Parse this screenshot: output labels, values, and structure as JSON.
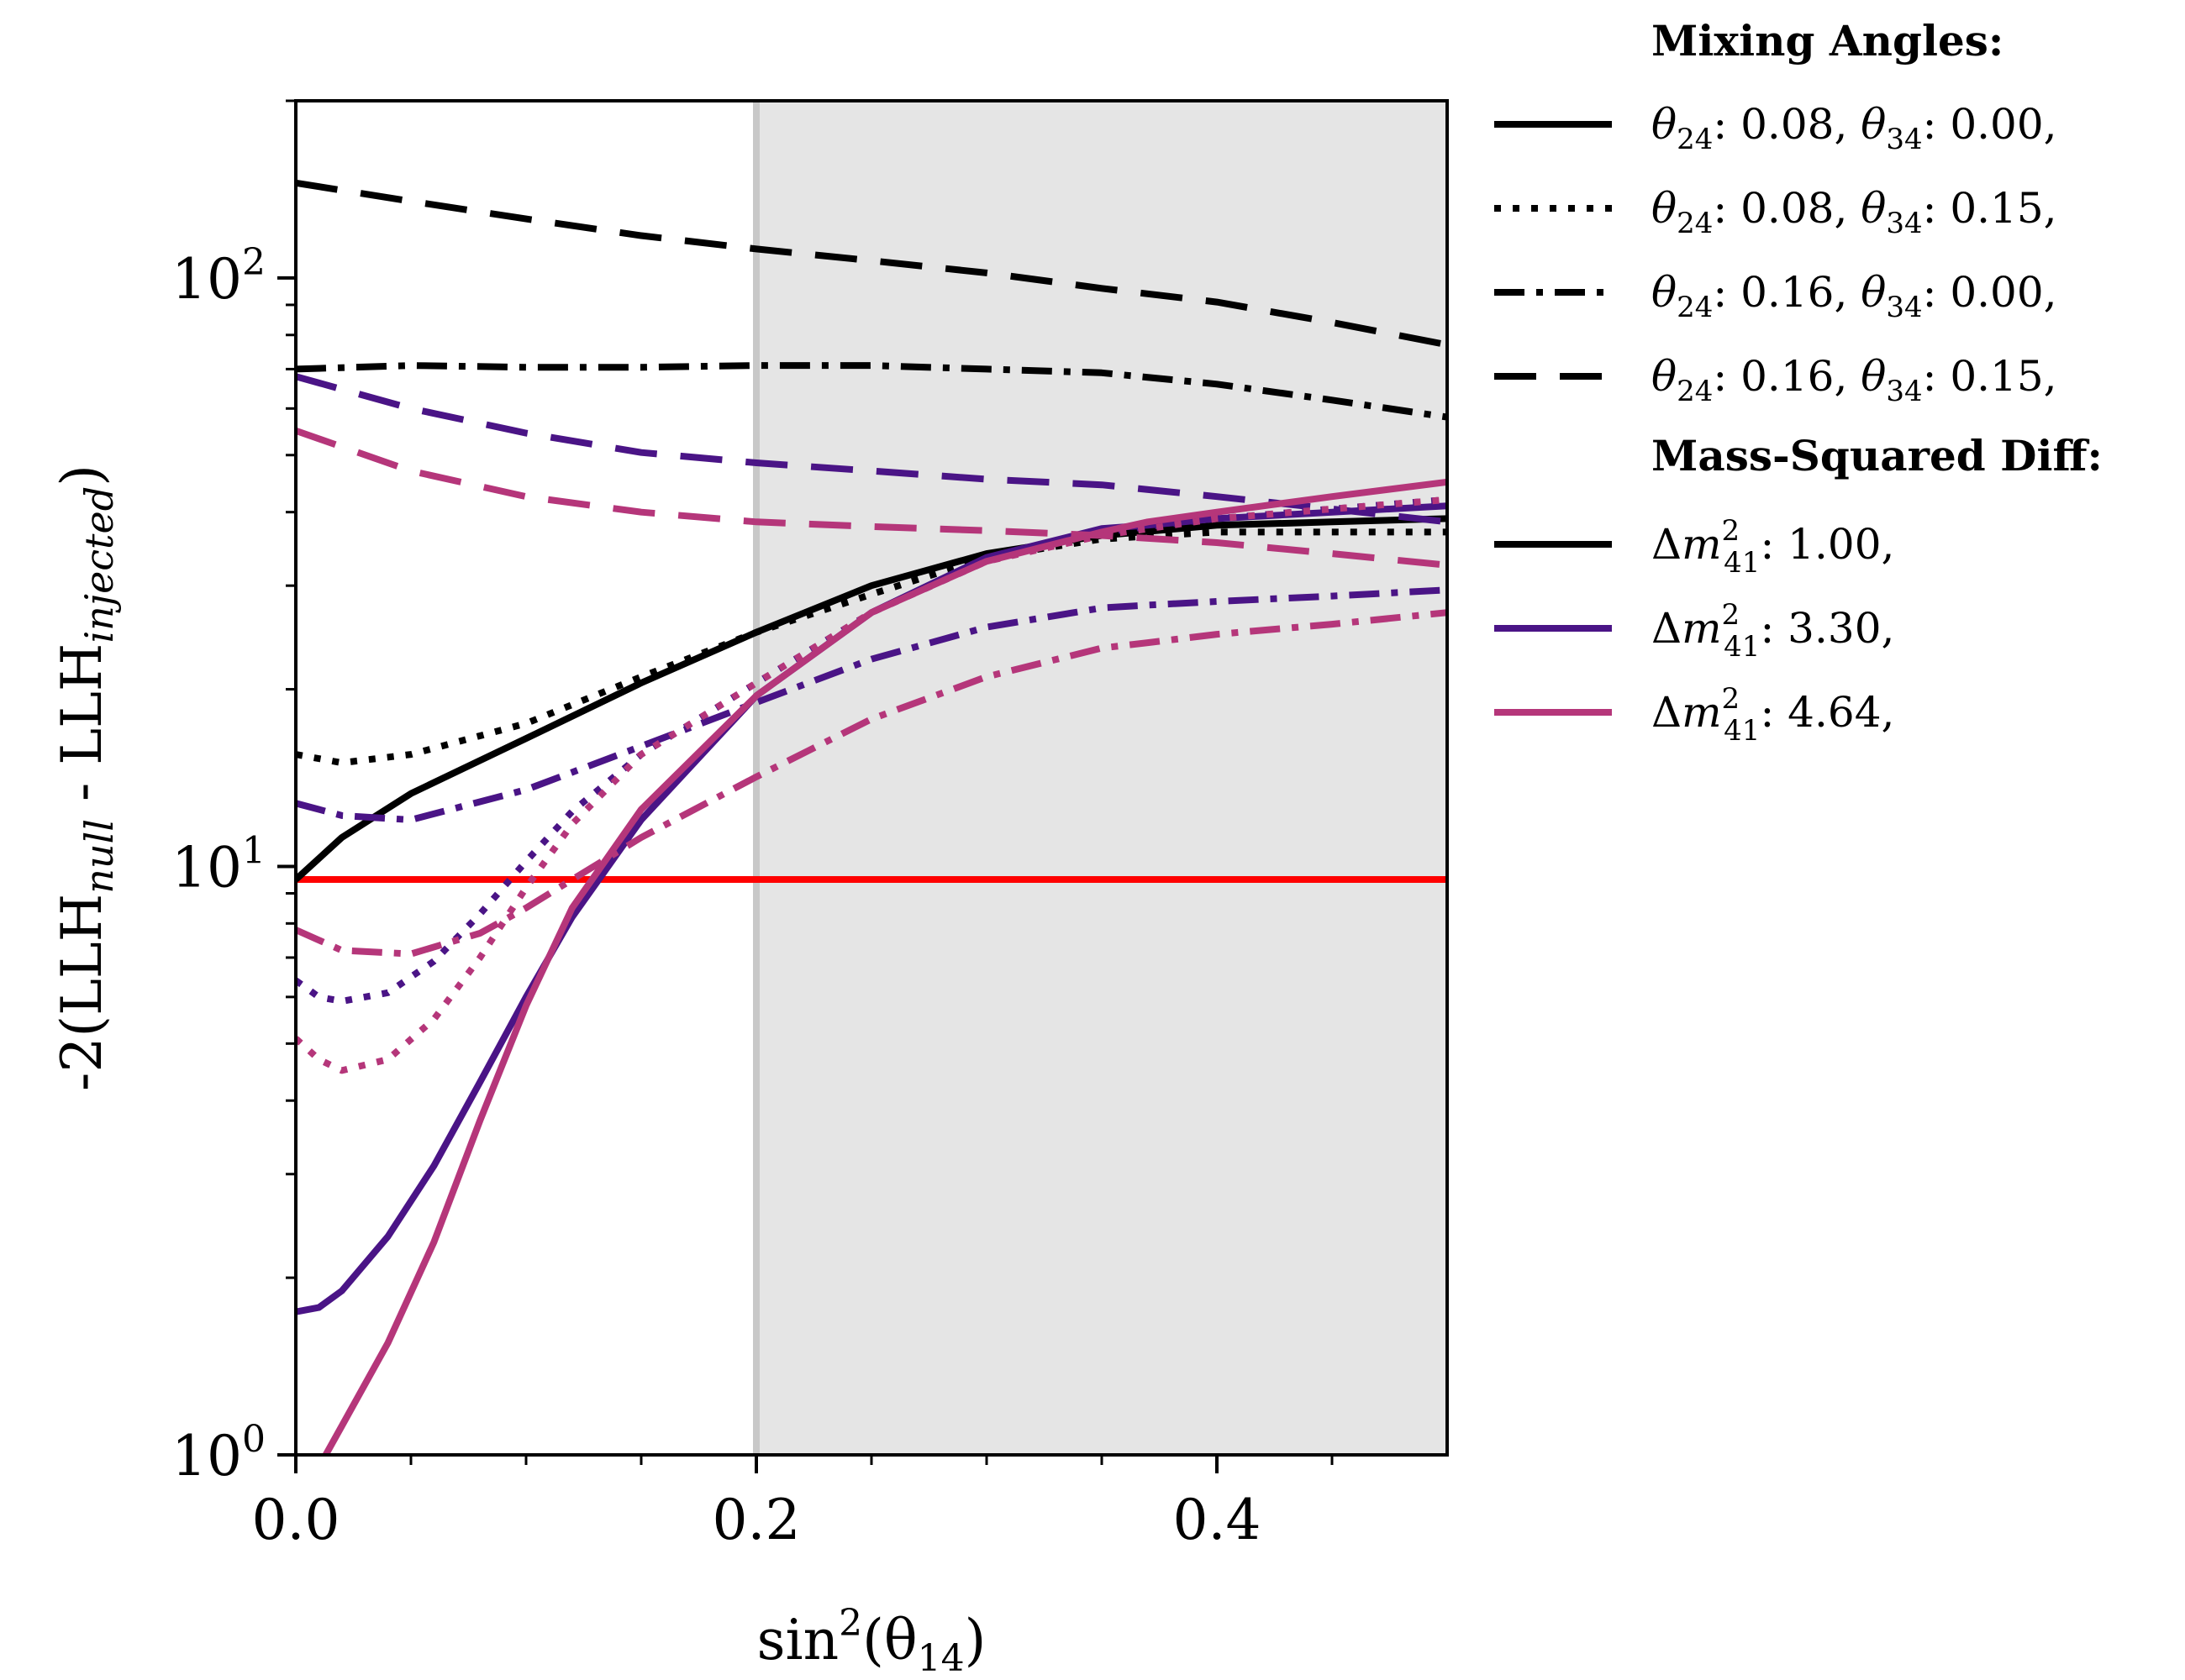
{
  "chart_data": {
    "type": "line",
    "yscale": "log",
    "xlim": [
      0.0,
      0.5
    ],
    "ylim": [
      1,
      200
    ],
    "xlabel": "sin²(θ14)",
    "ylabel": "-2(LLH_null - LLH_injected)",
    "ylabel_parts": {
      "pre": "-2(LLH",
      "sub1": "null",
      "mid": " - LLH",
      "sub2": "injected",
      "post": ")"
    },
    "x_ticks": [
      {
        "value": 0.0,
        "label": "0.0"
      },
      {
        "value": 0.2,
        "label": "0.2"
      },
      {
        "value": 0.4,
        "label": "0.4"
      }
    ],
    "x_minor_ticks": [
      0.05,
      0.1,
      0.15,
      0.25,
      0.3,
      0.35,
      0.45
    ],
    "y_ticks": [
      {
        "value": 1,
        "label": "10",
        "exp": "0"
      },
      {
        "value": 10,
        "label": "10",
        "exp": "1"
      },
      {
        "value": 100,
        "label": "10",
        "exp": "2"
      }
    ],
    "shaded_region": {
      "x_start": 0.2,
      "x_end": 0.5,
      "color": "#e5e5e5"
    },
    "boundary_line": {
      "x": 0.2,
      "color": "#c8c8c8"
    },
    "threshold_line": {
      "y": 9.5,
      "color": "#ff0000"
    },
    "mass_colors": {
      "1.00": "#000000",
      "3.30": "#4a1486",
      "4.64": "#b5367a"
    },
    "legend": {
      "mixing_title": "Mixing Angles:",
      "mixing_entries": [
        {
          "style": "solid",
          "t24": "0.08",
          "t34": "0.00",
          "sep": ", ",
          "end": ","
        },
        {
          "style": "dotted",
          "t24": "0.08",
          "t34": "0.15",
          "sep": ", ",
          "end": ","
        },
        {
          "style": "dashdot",
          "t24": "0.16",
          "t34": "0.00",
          "sep": ", ",
          "end": ","
        },
        {
          "style": "dashed",
          "t24": "0.16",
          "t34": "0.15",
          "sep": ", ",
          "end": ","
        }
      ],
      "mass_title": "Mass-Squared Diff:",
      "mass_entries": [
        {
          "value": "1.00",
          "color": "#000000",
          "end": ","
        },
        {
          "value": "3.30",
          "color": "#4a1486",
          "end": ","
        },
        {
          "value": "4.64",
          "color": "#b5367a",
          "end": ","
        }
      ]
    },
    "series": [
      {
        "name": "dm2=1.00 solid",
        "dm2": "1.00",
        "style": "solid",
        "x": [
          0,
          0.02,
          0.05,
          0.1,
          0.15,
          0.2,
          0.25,
          0.3,
          0.35,
          0.4,
          0.45,
          0.5
        ],
        "y": [
          9.5,
          11.2,
          13.3,
          16.5,
          20.5,
          25,
          30,
          34,
          36.5,
          38,
          38.5,
          39
        ]
      },
      {
        "name": "dm2=1.00 dotted",
        "dm2": "1.00",
        "style": "dotted",
        "x": [
          0,
          0.02,
          0.05,
          0.1,
          0.15,
          0.2,
          0.25,
          0.3,
          0.35,
          0.4,
          0.45,
          0.5
        ],
        "y": [
          15.5,
          15,
          15.5,
          17.5,
          21,
          25,
          29,
          33.5,
          36,
          37,
          37,
          37
        ]
      },
      {
        "name": "dm2=1.00 dashdot",
        "dm2": "1.00",
        "style": "dashdot",
        "x": [
          0,
          0.05,
          0.1,
          0.15,
          0.2,
          0.25,
          0.3,
          0.35,
          0.4,
          0.45,
          0.5
        ],
        "y": [
          70,
          71,
          70.5,
          70.5,
          71,
          71,
          70,
          69,
          66,
          62,
          58
        ]
      },
      {
        "name": "dm2=1.00 dashed",
        "dm2": "1.00",
        "style": "dashed",
        "x": [
          0,
          0.05,
          0.1,
          0.15,
          0.2,
          0.25,
          0.3,
          0.35,
          0.4,
          0.45,
          0.5
        ],
        "y": [
          145,
          135,
          126,
          118,
          112,
          107,
          102,
          96,
          91,
          84,
          77
        ]
      },
      {
        "name": "dm2=3.30 solid",
        "dm2": "3.30",
        "style": "solid",
        "x": [
          0,
          0.01,
          0.02,
          0.04,
          0.06,
          0.08,
          0.1,
          0.12,
          0.15,
          0.2,
          0.25,
          0.3,
          0.35,
          0.37,
          0.4,
          0.45,
          0.5
        ],
        "y": [
          1.75,
          1.78,
          1.9,
          2.35,
          3.1,
          4.3,
          6.0,
          8.2,
          12,
          19.5,
          27,
          33.5,
          37.5,
          38,
          39,
          40,
          41
        ]
      },
      {
        "name": "dm2=3.30 dotted",
        "dm2": "3.30",
        "style": "dotted",
        "x": [
          0,
          0.01,
          0.02,
          0.04,
          0.06,
          0.08,
          0.1,
          0.12,
          0.15,
          0.2,
          0.25,
          0.3,
          0.35,
          0.4,
          0.45,
          0.5
        ],
        "y": [
          6.4,
          6.0,
          5.9,
          6.1,
          6.9,
          8.3,
          10.2,
          12.4,
          15.5,
          20.5,
          27,
          33,
          37,
          39,
          40.5,
          42
        ]
      },
      {
        "name": "dm2=3.30 dashdot",
        "dm2": "3.30",
        "style": "dashdot",
        "x": [
          0,
          0.02,
          0.05,
          0.1,
          0.15,
          0.2,
          0.25,
          0.3,
          0.35,
          0.37,
          0.4,
          0.45,
          0.5
        ],
        "y": [
          12.8,
          12.2,
          12,
          13.5,
          16,
          19,
          22.5,
          25.5,
          27.5,
          27.8,
          28.2,
          28.8,
          29.5
        ]
      },
      {
        "name": "dm2=3.30 dashed",
        "dm2": "3.30",
        "style": "dashed",
        "x": [
          0,
          0.05,
          0.1,
          0.15,
          0.2,
          0.25,
          0.3,
          0.35,
          0.4,
          0.45,
          0.5
        ],
        "y": [
          68,
          60,
          54.5,
          50.5,
          48.5,
          47,
          45.5,
          44.5,
          42.5,
          40.5,
          38.5
        ]
      },
      {
        "name": "dm2=4.64 solid",
        "dm2": "4.64",
        "style": "solid",
        "x": [
          0.013,
          0.02,
          0.04,
          0.06,
          0.08,
          0.1,
          0.12,
          0.15,
          0.2,
          0.25,
          0.3,
          0.35,
          0.37,
          0.4,
          0.45,
          0.5
        ],
        "y": [
          1.0,
          1.12,
          1.55,
          2.3,
          3.7,
          5.8,
          8.5,
          12.5,
          19.5,
          27,
          33,
          37,
          38.5,
          40,
          42.5,
          45
        ]
      },
      {
        "name": "dm2=4.64 dotted",
        "dm2": "4.64",
        "style": "dotted",
        "x": [
          0,
          0.01,
          0.02,
          0.04,
          0.06,
          0.08,
          0.1,
          0.12,
          0.15,
          0.2,
          0.25,
          0.3,
          0.35,
          0.4,
          0.45,
          0.5
        ],
        "y": [
          5.1,
          4.7,
          4.5,
          4.7,
          5.5,
          7.0,
          9.2,
          11.8,
          15.5,
          20.5,
          27,
          33,
          36.5,
          39,
          40.5,
          42
        ]
      },
      {
        "name": "dm2=4.64 dashdot",
        "dm2": "4.64",
        "style": "dashdot",
        "x": [
          0,
          0.02,
          0.05,
          0.08,
          0.1,
          0.12,
          0.15,
          0.2,
          0.25,
          0.3,
          0.35,
          0.37,
          0.4,
          0.45,
          0.5
        ],
        "y": [
          7.8,
          7.2,
          7.1,
          7.7,
          8.5,
          9.5,
          11.2,
          14.2,
          17.8,
          21,
          23.5,
          24,
          24.8,
          25.8,
          27
        ]
      },
      {
        "name": "dm2=4.64 dashed",
        "dm2": "4.64",
        "style": "dashed",
        "x": [
          0,
          0.05,
          0.1,
          0.15,
          0.2,
          0.25,
          0.3,
          0.35,
          0.4,
          0.45,
          0.5
        ],
        "y": [
          55,
          47,
          42.5,
          40,
          38.5,
          37.8,
          37.2,
          36.5,
          35.5,
          34,
          32.5
        ]
      }
    ]
  }
}
